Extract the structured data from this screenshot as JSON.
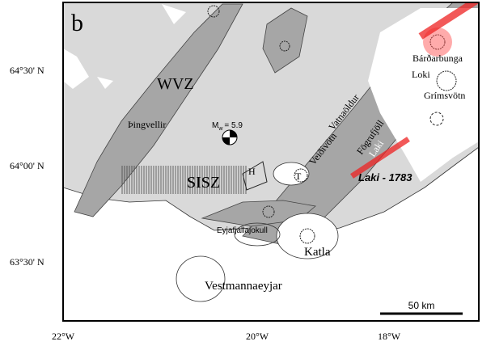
{
  "panel_label": "b",
  "axes": {
    "lat_labels": [
      "64°30' N",
      "64°00' N",
      "63°30' N"
    ],
    "lon_labels": [
      "22°W",
      "20°W",
      "18°W"
    ]
  },
  "labels": {
    "wvz": "WVZ",
    "thingvellir": "Þingvellir",
    "sisz": "SISZ",
    "h": "H",
    "t": "T",
    "vatnaoldur": "Vatnaöldur",
    "veidivotn": "Veiðivötn",
    "fogrufjoll": "Fögrufjöll",
    "laki": "Laki",
    "laki_1783": "Laki - 1783",
    "bardarbunga": "Bárðarbunga",
    "loki": "Loki",
    "grimsvotn": "Grímsvötn",
    "eyjafjallajokull": "Eyjafjallajokull",
    "katla": "Katla",
    "vestmannaeyjar": "Vestmannaeyjar"
  },
  "magnitude": {
    "symbol": "M",
    "subscript": "w",
    "text": "= 5.9"
  },
  "scale_bar": "50 km"
}
